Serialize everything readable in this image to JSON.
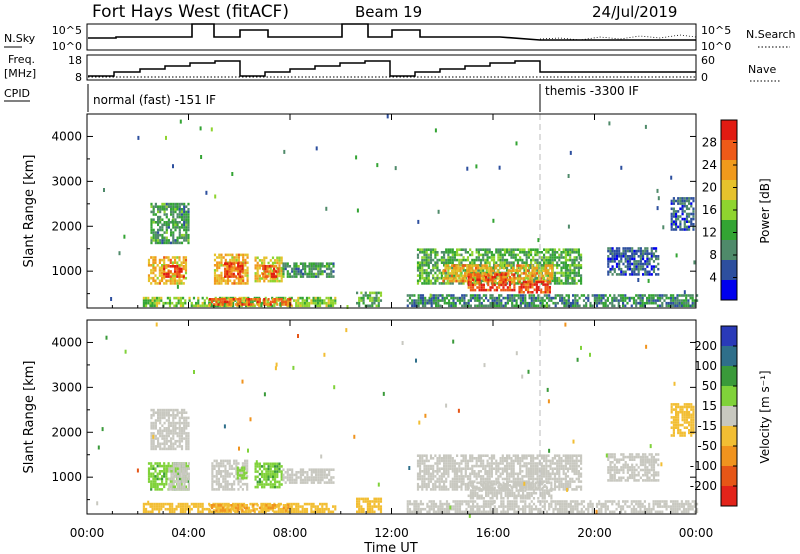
{
  "header": {
    "radar": "Fort Hays West (fitACF)",
    "beam": "Beam 19",
    "date": "24/Jul/2019"
  },
  "strip": {
    "nsky_label": "N.Sky",
    "nsky_ticks": [
      "10^5",
      "10^0"
    ],
    "nsearch_label": "N.Search",
    "nsearch_ticks": [
      "10^5",
      "10^0"
    ],
    "freq_label": "Freq.",
    "freq_unit": "[MHz]",
    "freq_ticks": [
      "18",
      "8"
    ],
    "nave_label": "Nave",
    "nave_ticks": [
      "60",
      "0"
    ],
    "cpid_label": "CPID",
    "cpid_segments": [
      "normal (fast) -151 IF",
      "themis -3300 IF"
    ]
  },
  "colors": {
    "power": [
      "#0000ee",
      "#2d4f9e",
      "#4f8a6a",
      "#33a433",
      "#8fd42f",
      "#e6c22c",
      "#f09a1c",
      "#ee5a18",
      "#e11b12"
    ],
    "velocity": [
      "#2a3ab8",
      "#2f6f8a",
      "#3a9a3a",
      "#80d23a",
      "#c8c8c0",
      "#f2be33",
      "#f0931e",
      "#e65617",
      "#e2231a"
    ],
    "ground_scatter": "#c8c8c0"
  },
  "chart_data": [
    {
      "type": "heatmap",
      "name": "power",
      "xlabel": "",
      "ylabel": "Slant Range [km]",
      "x_range_hours": [
        0,
        24
      ],
      "x_ticks": [
        "00:00",
        "04:00",
        "08:00",
        "12:00",
        "16:00",
        "20:00",
        "00:00"
      ],
      "ylim": [
        180,
        4500
      ],
      "y_ticks": [
        "1000",
        "2000",
        "3000",
        "4000"
      ],
      "colorbar_label": "Power [dB]",
      "colorbar_ticks": [
        "28",
        "24",
        "20",
        "16",
        "12",
        "8",
        "4"
      ],
      "colorbar_range": [
        0,
        30
      ],
      "regions": [
        {
          "t0": 2.4,
          "t1": 3.9,
          "r0": 700,
          "r1": 1300,
          "v": 20
        },
        {
          "t0": 3.0,
          "t1": 3.8,
          "r0": 850,
          "r1": 1100,
          "v": 26
        },
        {
          "t0": 5.0,
          "t1": 6.3,
          "r0": 700,
          "r1": 1350,
          "v": 20
        },
        {
          "t0": 5.4,
          "t1": 6.1,
          "r0": 850,
          "r1": 1150,
          "v": 26
        },
        {
          "t0": 6.6,
          "t1": 7.7,
          "r0": 750,
          "r1": 1300,
          "v": 18
        },
        {
          "t0": 6.9,
          "t1": 7.5,
          "r0": 850,
          "r1": 1100,
          "v": 25
        },
        {
          "t0": 7.7,
          "t1": 9.7,
          "r0": 850,
          "r1": 1150,
          "v": 10
        },
        {
          "t0": 2.2,
          "t1": 9.8,
          "r0": 200,
          "r1": 430,
          "v": 14
        },
        {
          "t0": 4.8,
          "t1": 8.0,
          "r0": 230,
          "r1": 360,
          "v": 24
        },
        {
          "t0": 10.6,
          "t1": 11.6,
          "r0": 200,
          "r1": 500,
          "v": 12
        },
        {
          "t0": 13.0,
          "t1": 19.5,
          "r0": 700,
          "r1": 1450,
          "v": 12
        },
        {
          "t0": 14.0,
          "t1": 18.3,
          "r0": 750,
          "r1": 1150,
          "v": 20
        },
        {
          "t0": 15.0,
          "t1": 16.8,
          "r0": 550,
          "r1": 900,
          "v": 26
        },
        {
          "t0": 17.0,
          "t1": 18.2,
          "r0": 500,
          "r1": 780,
          "v": 26
        },
        {
          "t0": 12.6,
          "t1": 24.0,
          "r0": 200,
          "r1": 450,
          "v": 9
        },
        {
          "t0": 20.5,
          "t1": 22.5,
          "r0": 900,
          "r1": 1500,
          "v": 6
        },
        {
          "t0": 2.5,
          "t1": 4.0,
          "r0": 1600,
          "r1": 2500,
          "v": 10
        },
        {
          "t0": 23.0,
          "t1": 23.9,
          "r0": 1900,
          "r1": 2600,
          "v": 6
        }
      ]
    },
    {
      "type": "heatmap",
      "name": "velocity",
      "xlabel": "Time UT",
      "ylabel": "Slant Range [km]",
      "x_range_hours": [
        0,
        24
      ],
      "x_ticks": [
        "00:00",
        "04:00",
        "08:00",
        "12:00",
        "16:00",
        "20:00",
        "00:00"
      ],
      "ylim": [
        180,
        4500
      ],
      "y_ticks": [
        "1000",
        "2000",
        "3000",
        "4000"
      ],
      "colorbar_label": "Velocity [m s⁻¹]",
      "colorbar_ticks": [
        "200",
        "100",
        "50",
        "15",
        "-15",
        "-50",
        "-100",
        "-200"
      ],
      "colorbar_range": [
        -250,
        250
      ],
      "regions": [
        {
          "t0": 2.4,
          "t1": 4.0,
          "r0": 700,
          "r1": 1300,
          "v": 70
        },
        {
          "t0": 3.2,
          "t1": 4.0,
          "r0": 700,
          "r1": 1300,
          "v": 0
        },
        {
          "t0": 4.9,
          "t1": 6.3,
          "r0": 700,
          "r1": 1350,
          "v": 0
        },
        {
          "t0": 5.9,
          "t1": 6.3,
          "r0": 950,
          "r1": 1200,
          "v": 60
        },
        {
          "t0": 6.6,
          "t1": 7.7,
          "r0": 750,
          "r1": 1300,
          "v": 70
        },
        {
          "t0": 7.7,
          "t1": 9.7,
          "r0": 850,
          "r1": 1150,
          "v": 0
        },
        {
          "t0": 2.2,
          "t1": 9.8,
          "r0": 200,
          "r1": 430,
          "v": -50
        },
        {
          "t0": 4.8,
          "t1": 8.0,
          "r0": 230,
          "r1": 360,
          "v": -80
        },
        {
          "t0": 10.6,
          "t1": 11.6,
          "r0": 200,
          "r1": 500,
          "v": -60
        },
        {
          "t0": 13.0,
          "t1": 19.5,
          "r0": 700,
          "r1": 1450,
          "v": 0
        },
        {
          "t0": 15.0,
          "t1": 18.3,
          "r0": 500,
          "r1": 900,
          "v": 0
        },
        {
          "t0": 12.6,
          "t1": 24.0,
          "r0": 200,
          "r1": 450,
          "v": 0
        },
        {
          "t0": 20.5,
          "t1": 22.5,
          "r0": 900,
          "r1": 1500,
          "v": 0
        },
        {
          "t0": 2.5,
          "t1": 4.0,
          "r0": 1600,
          "r1": 2500,
          "v": 0
        },
        {
          "t0": 23.0,
          "t1": 23.9,
          "r0": 1900,
          "r1": 2600,
          "v": -60
        }
      ]
    }
  ]
}
